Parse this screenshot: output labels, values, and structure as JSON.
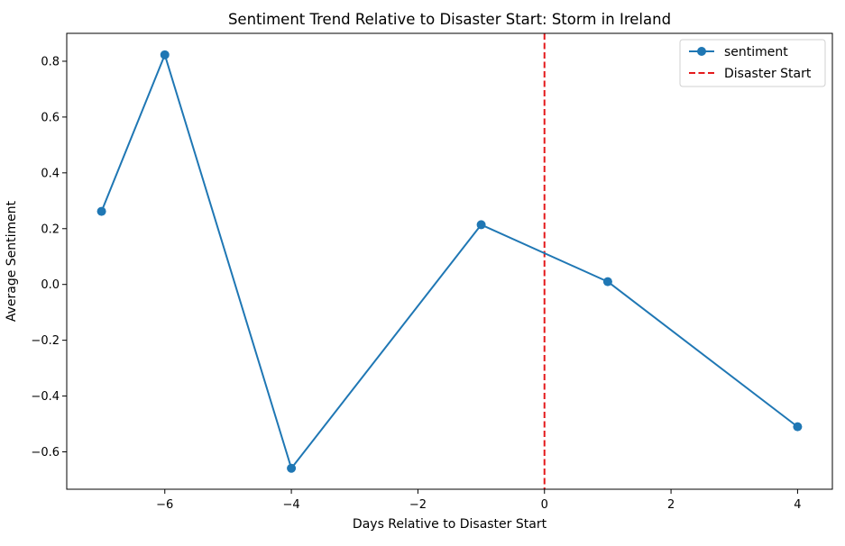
{
  "chart_data": {
    "type": "line",
    "title": "Sentiment Trend Relative to Disaster Start: Storm in Ireland",
    "xlabel": "Days Relative to Disaster Start",
    "ylabel": "Average Sentiment",
    "xlim": [
      -7.55,
      4.55
    ],
    "ylim": [
      -0.734,
      0.9
    ],
    "xticks": [
      -6,
      -4,
      -2,
      0,
      2,
      4
    ],
    "xtick_labels": [
      "−6",
      "−4",
      "−2",
      "0",
      "2",
      "4"
    ],
    "yticks": [
      -0.6,
      -0.4,
      -0.2,
      0.0,
      0.2,
      0.4,
      0.6,
      0.8
    ],
    "ytick_labels": [
      "−0.6",
      "−0.4",
      "−0.2",
      "0.0",
      "0.2",
      "0.4",
      "0.6",
      "0.8"
    ],
    "grid": false,
    "legend_position": "top-right",
    "series": [
      {
        "name": "sentiment",
        "color": "#1f77b4",
        "marker": "circle",
        "x": [
          -7,
          -6,
          -4,
          -1,
          1,
          4
        ],
        "y": [
          0.262,
          0.823,
          -0.659,
          0.214,
          0.01,
          -0.51
        ]
      }
    ],
    "vlines": [
      {
        "name": "Disaster Start",
        "x": 0,
        "color": "#e41a1c",
        "style": "dashed"
      }
    ]
  }
}
